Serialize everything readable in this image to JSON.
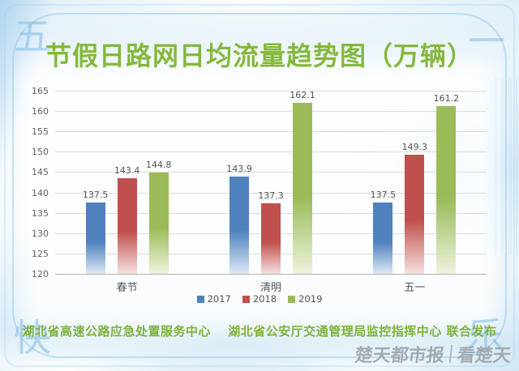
{
  "title": "节假日路网日均流量趋势图（万辆）",
  "decorations": {
    "corners": [
      "五",
      "一",
      "快",
      "乐"
    ]
  },
  "footer": {
    "issuers": "湖北省高速公路应急处置服务中心　 湖北省公安厅交通管理局监控指挥中心 联合发布",
    "watermark_name": "楚天都市报",
    "watermark_slogan": "看楚天"
  },
  "colors": {
    "accent_green": "#84b83e",
    "bar_blue": "#4f81bd",
    "bar_red": "#c0504d",
    "bar_green": "#9bbb59"
  },
  "chart_data": {
    "type": "bar",
    "title": "节假日路网日均流量趋势图（万辆）",
    "categories": [
      "春节",
      "清明",
      "五一"
    ],
    "series": [
      {
        "name": "2017",
        "color": "#4f81bd",
        "fade": "#dce8f4",
        "values": [
          137.5,
          143.9,
          137.5
        ]
      },
      {
        "name": "2018",
        "color": "#c0504d",
        "fade": "#f5e0df",
        "values": [
          143.4,
          137.3,
          149.3
        ]
      },
      {
        "name": "2019",
        "color": "#9bbb59",
        "fade": "#eef3dd",
        "values": [
          144.8,
          162.1,
          161.2
        ]
      }
    ],
    "ylim": [
      120,
      165
    ],
    "ytick_step": 5,
    "grid": true,
    "legend_position": "bottom",
    "xlabel": "",
    "ylabel": ""
  }
}
